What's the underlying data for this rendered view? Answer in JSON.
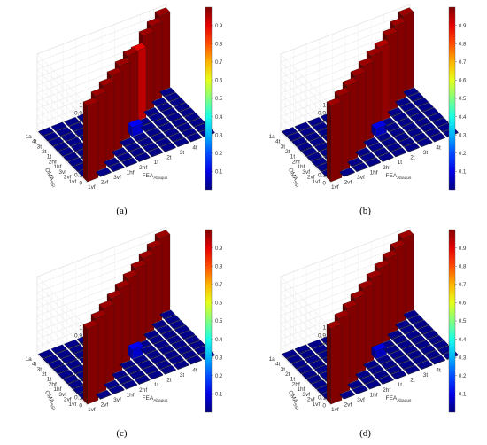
{
  "chart_data": [
    {
      "panel": "a",
      "caption": "(a)",
      "type": "3d-bar",
      "zlabel": "MAC",
      "xlabel": "FEA",
      "xlabel_sub": "Abaqus",
      "ylabel": "OMA",
      "ylabel_sub": "SSI",
      "x_categories": [
        "1vf",
        "2vf",
        "3vf",
        "1hf",
        "2hf",
        "1t",
        "2t",
        "3t",
        "4t",
        "1a"
      ],
      "y_categories": [
        "1vf",
        "2vf",
        "3vf",
        "1hf",
        "2hf",
        "1t",
        "2t",
        "3t",
        "4t",
        "1a"
      ],
      "zlim": [
        0,
        1
      ],
      "zticks": [
        0,
        0.1,
        0.2,
        0.3,
        0.4,
        0.5,
        0.6,
        0.7,
        0.8,
        0.9,
        1
      ],
      "colorbar_ticks": [
        0.1,
        0.2,
        0.3,
        0.4,
        0.5,
        0.6,
        0.7,
        0.8,
        0.9
      ],
      "colormap": "jet",
      "cells": [
        {
          "x": "1vf",
          "y": "1vf",
          "mac": 0.97
        },
        {
          "x": "2vf",
          "y": "2vf",
          "mac": 0.97
        },
        {
          "x": "3vf",
          "y": "3vf",
          "mac": 0.97
        },
        {
          "x": "1hf",
          "y": "1hf",
          "mac": 0.97
        },
        {
          "x": "2hf",
          "y": "2hf",
          "mac": 0.97
        },
        {
          "x": "1t",
          "y": "1t",
          "mac": 0.97
        },
        {
          "x": "2t",
          "y": "2t",
          "mac": 0.9
        },
        {
          "x": "3t",
          "y": "3t",
          "mac": 0.97
        },
        {
          "x": "4t",
          "y": "4t",
          "mac": 0.97
        },
        {
          "x": "1a",
          "y": "1a",
          "mac": 0.97
        },
        {
          "x": "1t",
          "y": "2hf",
          "mac": 0.12
        }
      ]
    },
    {
      "panel": "b",
      "caption": "(b)",
      "type": "3d-bar",
      "zlabel": "MAC",
      "xlabel": "FEA",
      "xlabel_sub": "Abaqus",
      "ylabel": "OMA",
      "ylabel_sub": "SSI",
      "x_categories": [
        "1vf",
        "2vf",
        "3vf",
        "1hf",
        "2hf",
        "1t",
        "2t",
        "3t",
        "4t",
        "1a"
      ],
      "y_categories": [
        "1vf",
        "2vf",
        "3vf",
        "1hf",
        "2hf",
        "1t",
        "2t",
        "3t",
        "4t",
        "1a"
      ],
      "zlim": [
        0,
        1
      ],
      "zticks": [
        0,
        0.1,
        0.2,
        0.3,
        0.4,
        0.5,
        0.6,
        0.7,
        0.8,
        0.9,
        1
      ],
      "colorbar_ticks": [
        0.1,
        0.2,
        0.3,
        0.4,
        0.5,
        0.6,
        0.7,
        0.8,
        0.9
      ],
      "colormap": "jet",
      "cells": [
        {
          "x": "1vf",
          "y": "1vf",
          "mac": 0.97
        },
        {
          "x": "2vf",
          "y": "2vf",
          "mac": 0.97
        },
        {
          "x": "3vf",
          "y": "3vf",
          "mac": 0.97
        },
        {
          "x": "1hf",
          "y": "1hf",
          "mac": 0.97
        },
        {
          "x": "2hf",
          "y": "2hf",
          "mac": 0.97
        },
        {
          "x": "1t",
          "y": "1t",
          "mac": 0.97
        },
        {
          "x": "2t",
          "y": "2t",
          "mac": 0.95
        },
        {
          "x": "3t",
          "y": "3t",
          "mac": 0.97
        },
        {
          "x": "4t",
          "y": "4t",
          "mac": 0.97
        },
        {
          "x": "1a",
          "y": "1a",
          "mac": 0.97
        },
        {
          "x": "1t",
          "y": "2hf",
          "mac": 0.1
        }
      ]
    },
    {
      "panel": "c",
      "caption": "(c)",
      "type": "3d-bar",
      "zlabel": "MAC",
      "xlabel": "FEA",
      "xlabel_sub": "Abaqus",
      "ylabel": "OMA",
      "ylabel_sub": "SSI",
      "x_categories": [
        "1vf",
        "2vf",
        "3vf",
        "1hf",
        "2hf",
        "1t",
        "2t",
        "3t",
        "4t",
        "1a"
      ],
      "y_categories": [
        "1vf",
        "2vf",
        "3vf",
        "1hf",
        "2hf",
        "1t",
        "2t",
        "3t",
        "4t",
        "1a"
      ],
      "zlim": [
        0,
        1
      ],
      "zticks": [
        0,
        0.1,
        0.2,
        0.3,
        0.4,
        0.5,
        0.6,
        0.7,
        0.8,
        0.9,
        1
      ],
      "colorbar_ticks": [
        0.1,
        0.2,
        0.3,
        0.4,
        0.5,
        0.6,
        0.7,
        0.8,
        0.9
      ],
      "colormap": "jet",
      "cells": [
        {
          "x": "1vf",
          "y": "1vf",
          "mac": 0.97
        },
        {
          "x": "2vf",
          "y": "2vf",
          "mac": 0.97
        },
        {
          "x": "3vf",
          "y": "3vf",
          "mac": 0.97
        },
        {
          "x": "1hf",
          "y": "1hf",
          "mac": 0.97
        },
        {
          "x": "2hf",
          "y": "2hf",
          "mac": 0.97
        },
        {
          "x": "1t",
          "y": "1t",
          "mac": 0.97
        },
        {
          "x": "2t",
          "y": "2t",
          "mac": 0.97
        },
        {
          "x": "3t",
          "y": "3t",
          "mac": 0.97
        },
        {
          "x": "4t",
          "y": "4t",
          "mac": 0.97
        },
        {
          "x": "1a",
          "y": "1a",
          "mac": 0.97
        },
        {
          "x": "1t",
          "y": "2hf",
          "mac": 0.12
        }
      ]
    },
    {
      "panel": "d",
      "caption": "(d)",
      "type": "3d-bar",
      "zlabel": "MAC",
      "xlabel": "FEA",
      "xlabel_sub": "Abaqus",
      "ylabel": "OMA",
      "ylabel_sub": "SSI",
      "x_categories": [
        "1vf",
        "2vf",
        "3vf",
        "1hf",
        "2hf",
        "1t",
        "2t",
        "3t",
        "4t",
        "1a"
      ],
      "y_categories": [
        "1vf",
        "2vf",
        "3vf",
        "1hf",
        "2hf",
        "1t",
        "2t",
        "3t",
        "4t",
        "1a"
      ],
      "zlim": [
        0,
        1
      ],
      "zticks": [
        0,
        0.1,
        0.2,
        0.3,
        0.4,
        0.5,
        0.6,
        0.7,
        0.8,
        0.9,
        1
      ],
      "colorbar_ticks": [
        0.1,
        0.2,
        0.3,
        0.4,
        0.5,
        0.6,
        0.7,
        0.8,
        0.9
      ],
      "colormap": "jet",
      "cells": [
        {
          "x": "1vf",
          "y": "1vf",
          "mac": 0.97
        },
        {
          "x": "2vf",
          "y": "2vf",
          "mac": 0.97
        },
        {
          "x": "3vf",
          "y": "3vf",
          "mac": 0.97
        },
        {
          "x": "1hf",
          "y": "1hf",
          "mac": 0.97
        },
        {
          "x": "2hf",
          "y": "2hf",
          "mac": 0.97
        },
        {
          "x": "1t",
          "y": "1t",
          "mac": 0.97
        },
        {
          "x": "2t",
          "y": "2t",
          "mac": 0.97
        },
        {
          "x": "3t",
          "y": "3t",
          "mac": 0.97
        },
        {
          "x": "4t",
          "y": "4t",
          "mac": 0.97
        },
        {
          "x": "1a",
          "y": "1a",
          "mac": 0.97
        },
        {
          "x": "1t",
          "y": "2hf",
          "mac": 0.1
        }
      ]
    }
  ]
}
